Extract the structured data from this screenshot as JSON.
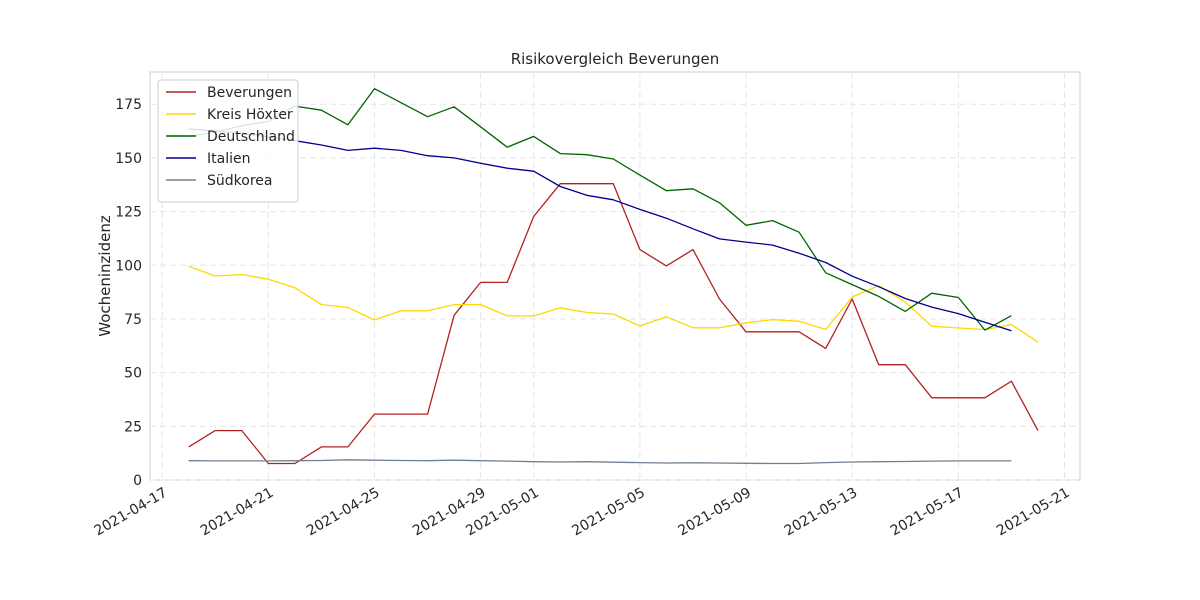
{
  "chart_data": {
    "type": "line",
    "title": "Risikovergleich Beverungen",
    "xlabel": "",
    "ylabel": "Wocheninzidenz",
    "x_start": "2021-04-17",
    "x": [
      "2021-04-18",
      "2021-04-19",
      "2021-04-20",
      "2021-04-21",
      "2021-04-22",
      "2021-04-23",
      "2021-04-24",
      "2021-04-25",
      "2021-04-26",
      "2021-04-27",
      "2021-04-28",
      "2021-04-29",
      "2021-04-30",
      "2021-05-01",
      "2021-05-02",
      "2021-05-03",
      "2021-05-04",
      "2021-05-05",
      "2021-05-06",
      "2021-05-07",
      "2021-05-08",
      "2021-05-09",
      "2021-05-10",
      "2021-05-11",
      "2021-05-12",
      "2021-05-13",
      "2021-05-14",
      "2021-05-15",
      "2021-05-16",
      "2021-05-17",
      "2021-05-18",
      "2021-05-19",
      "2021-05-20"
    ],
    "xlim": [
      "2021-04-16T13:00",
      "2021-05-21T14:00"
    ],
    "ylim": [
      0,
      190
    ],
    "xticks": [
      "2021-04-17",
      "2021-04-21",
      "2021-04-25",
      "2021-04-29",
      "2021-05-01",
      "2021-05-05",
      "2021-05-09",
      "2021-05-13",
      "2021-05-17",
      "2021-05-21"
    ],
    "yticks": [
      0,
      25,
      50,
      75,
      100,
      125,
      150,
      175
    ],
    "grid": true,
    "legend_position": "top-left",
    "series": [
      {
        "name": "Beverungen",
        "color": "#b22222",
        "values": [
          15.4,
          23.0,
          23.0,
          7.7,
          7.7,
          15.4,
          15.4,
          30.7,
          30.7,
          30.7,
          76.7,
          92.0,
          92.0,
          122.7,
          138.0,
          138.0,
          138.0,
          107.3,
          99.7,
          107.3,
          84.3,
          69.0,
          69.0,
          69.0,
          61.3,
          84.3,
          53.7,
          53.7,
          38.3,
          38.3,
          38.3,
          46.0,
          23.0
        ]
      },
      {
        "name": "Kreis Höxter",
        "color": "#ffd700",
        "values": [
          99.5,
          95.0,
          95.7,
          93.5,
          89.5,
          81.7,
          80.4,
          74.5,
          78.8,
          78.8,
          81.7,
          81.7,
          76.4,
          76.4,
          80.2,
          78.0,
          77.3,
          71.7,
          76.0,
          70.9,
          70.9,
          73.2,
          74.7,
          73.9,
          70.1,
          85.2,
          90.5,
          82.9,
          71.6,
          70.8,
          70.1,
          72.3,
          64.2
        ]
      },
      {
        "name": "Deutschland",
        "color": "#006400",
        "values": [
          160.0,
          162.0,
          165.0,
          167.0,
          174.1,
          172.2,
          165.4,
          182.2,
          175.7,
          169.2,
          173.8,
          164.5,
          155.0,
          160.0,
          152.0,
          151.5,
          149.5,
          142.0,
          134.7,
          135.6,
          129.1,
          118.6,
          120.8,
          115.4,
          96.5,
          91.0,
          85.5,
          78.5,
          87.0,
          85.0,
          69.8,
          76.5,
          null
        ]
      },
      {
        "name": "Italien",
        "color": "#00008b",
        "values": [
          163.5,
          162.5,
          161.5,
          159.8,
          158.0,
          156.0,
          153.5,
          154.5,
          153.5,
          151.0,
          150.0,
          147.5,
          145.2,
          143.8,
          136.7,
          132.6,
          130.5,
          126.0,
          121.9,
          117.0,
          112.3,
          110.8,
          109.4,
          105.6,
          101.3,
          94.9,
          90.0,
          84.5,
          80.5,
          77.5,
          73.5,
          69.5,
          null
        ]
      },
      {
        "name": "Südkorea",
        "color": "#708090",
        "values": [
          9.0,
          8.9,
          8.9,
          8.9,
          9.0,
          9.1,
          9.4,
          9.2,
          9.1,
          9.0,
          9.2,
          9.0,
          8.8,
          8.5,
          8.4,
          8.5,
          8.3,
          8.1,
          7.9,
          8.0,
          7.9,
          7.8,
          7.7,
          7.7,
          8.1,
          8.4,
          8.5,
          8.6,
          8.8,
          8.9,
          8.9,
          8.9,
          null
        ]
      }
    ]
  }
}
